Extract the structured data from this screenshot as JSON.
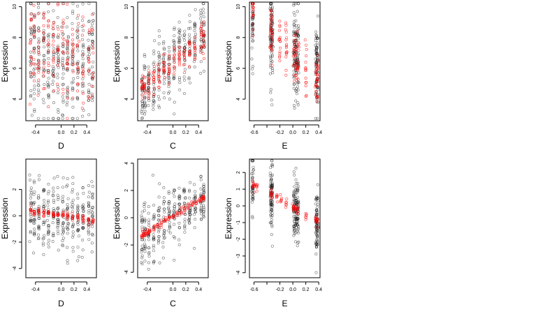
{
  "chart_data": [
    {
      "type": "scatter",
      "xlabel": "D",
      "ylabel": "Expression",
      "xlim": [
        -0.55,
        0.55
      ],
      "ylim": [
        2.6,
        10.3
      ],
      "xticks": [
        -0.4,
        0.0,
        0.2,
        0.4
      ],
      "xtick_labels": [
        "-0.4",
        "0.0",
        "0.2",
        "0.4"
      ],
      "yticks": [
        4,
        6,
        8,
        10
      ],
      "ytick_labels": [
        "4",
        "6",
        "8",
        "10"
      ],
      "series": [
        {
          "color": "#000000",
          "kind": "observed",
          "trend": {
            "slope": -0.5,
            "intercept": 6.5,
            "spread": 1.9
          },
          "x_levels": [
            -0.47,
            -0.42,
            -0.35,
            -0.27,
            -0.2,
            -0.12,
            -0.05,
            0.03,
            0.1,
            0.18,
            0.26,
            0.34,
            0.43,
            0.49
          ],
          "n": 360
        },
        {
          "color": "#ff0000",
          "kind": "fitted",
          "trend": {
            "slope": -1.2,
            "intercept": 6.9,
            "spread": 1.5
          },
          "x_levels": [
            -0.47,
            -0.42,
            -0.35,
            -0.27,
            -0.2,
            -0.12,
            -0.05,
            0.03,
            0.1,
            0.18,
            0.26,
            0.34,
            0.43,
            0.49
          ],
          "n": 180
        }
      ]
    },
    {
      "type": "scatter",
      "xlabel": "C",
      "ylabel": "Expression",
      "xlim": [
        -0.55,
        0.55
      ],
      "ylim": [
        2.6,
        10.3
      ],
      "xticks": [
        -0.4,
        0.0,
        0.2,
        0.4
      ],
      "xtick_labels": [
        "-0.4",
        "0.0",
        "0.2",
        "0.4"
      ],
      "yticks": [
        4,
        6,
        8,
        10
      ],
      "ytick_labels": [
        "4",
        "6",
        "8",
        "10"
      ],
      "series": [
        {
          "color": "#000000",
          "kind": "observed",
          "trend": {
            "slope": 3.6,
            "intercept": 6.4,
            "spread": 1.2
          },
          "x_levels": [
            -0.48,
            -0.44,
            -0.38,
            -0.3,
            -0.22,
            -0.14,
            -0.06,
            0.02,
            0.1,
            0.18,
            0.26,
            0.34,
            0.44,
            0.48
          ],
          "n": 300
        },
        {
          "color": "#ff0000",
          "kind": "fitted",
          "trend": {
            "slope": 3.4,
            "intercept": 6.3,
            "spread": 0.5
          },
          "x_levels": [
            -0.48,
            -0.44,
            -0.38,
            -0.3,
            -0.22,
            -0.14,
            -0.06,
            0.02,
            0.1,
            0.18,
            0.26,
            0.34,
            0.44,
            0.48
          ],
          "n": 160
        }
      ]
    },
    {
      "type": "scatter",
      "xlabel": "E",
      "ylabel": "Expression",
      "xlim": [
        -0.67,
        0.42
      ],
      "ylim": [
        2.6,
        10.3
      ],
      "xticks": [
        -0.6,
        -0.4,
        -0.2,
        0.0,
        0.2,
        0.4
      ],
      "xtick_labels": [
        "-0.6",
        "",
        "-0.2",
        "0.0",
        "0.2",
        "0.4"
      ],
      "yticks": [
        4,
        6,
        8,
        10
      ],
      "ytick_labels": [
        "4",
        "6",
        "8",
        "10"
      ],
      "series": [
        {
          "color": "#000000",
          "kind": "observed",
          "trend": {
            "slope": -3.2,
            "intercept": 7.0,
            "spread": 1.4
          },
          "x_levels": [
            -0.62,
            -0.34,
            -0.32,
            0.02,
            0.05,
            0.08,
            0.36,
            0.38
          ],
          "n": 340
        },
        {
          "color": "#ff0000",
          "kind": "fitted",
          "trend": {
            "slope": -4.0,
            "intercept": 7.0,
            "spread": 0.9
          },
          "x_levels": [
            -0.62,
            -0.34,
            -0.32,
            -0.2,
            -0.1,
            0.02,
            0.05,
            0.08,
            0.2,
            0.36,
            0.38
          ],
          "n": 170
        }
      ]
    },
    {
      "type": "scatter",
      "xlabel": "D",
      "ylabel": "Expression",
      "xlim": [
        -0.55,
        0.55
      ],
      "ylim": [
        -4.7,
        4.3
      ],
      "xticks": [
        -0.4,
        0.0,
        0.2,
        0.4
      ],
      "xtick_labels": [
        "-0.4",
        "0.0",
        "0.2",
        "0.4"
      ],
      "yticks": [
        -4,
        -2,
        0,
        2
      ],
      "ytick_labels": [
        "-4",
        "-2",
        "0",
        "2"
      ],
      "series": [
        {
          "color": "#000000",
          "kind": "observed",
          "trend": {
            "slope": -0.3,
            "intercept": 0.0,
            "spread": 1.4
          },
          "x_levels": [
            -0.47,
            -0.42,
            -0.35,
            -0.27,
            -0.2,
            -0.12,
            -0.05,
            0.03,
            0.1,
            0.18,
            0.26,
            0.34,
            0.43,
            0.49
          ],
          "n": 320
        },
        {
          "color": "#ff0000",
          "kind": "fitted",
          "trend": {
            "slope": -0.8,
            "intercept": 0.05,
            "spread": 0.15
          },
          "x_levels": [
            -0.47,
            -0.42,
            -0.35,
            -0.27,
            -0.2,
            -0.12,
            -0.05,
            0.03,
            0.1,
            0.18,
            0.26,
            0.34,
            0.43,
            0.49
          ],
          "n": 110
        }
      ]
    },
    {
      "type": "scatter",
      "xlabel": "C",
      "ylabel": "Expression",
      "xlim": [
        -0.55,
        0.55
      ],
      "ylim": [
        -4.4,
        4.3
      ],
      "xticks": [
        -0.4,
        0.0,
        0.2,
        0.4
      ],
      "xtick_labels": [
        "-0.4",
        "0.0",
        "0.2",
        "0.4"
      ],
      "yticks": [
        -4,
        -2,
        0,
        2,
        4
      ],
      "ytick_labels": [
        "-4",
        "-2",
        "0",
        "2",
        "4"
      ],
      "series": [
        {
          "color": "#000000",
          "kind": "observed",
          "trend": {
            "slope": 2.9,
            "intercept": 0.1,
            "spread": 1.1
          },
          "x_levels": [
            -0.48,
            -0.44,
            -0.38,
            -0.3,
            -0.22,
            -0.14,
            -0.06,
            0.02,
            0.1,
            0.18,
            0.26,
            0.34,
            0.44,
            0.48
          ],
          "n": 300
        },
        {
          "color": "#ff0000",
          "kind": "fitted",
          "trend": {
            "slope": 2.9,
            "intercept": 0.1,
            "spread": 0.12
          },
          "x_levels": [
            -0.48,
            -0.46,
            -0.44,
            -0.4,
            -0.36,
            -0.3,
            -0.24,
            -0.18,
            -0.12,
            -0.06,
            0.0,
            0.06,
            0.12,
            0.18,
            0.24,
            0.3,
            0.36,
            0.42,
            0.46,
            0.48
          ],
          "n": 120
        }
      ]
    },
    {
      "type": "scatter",
      "xlabel": "E",
      "ylabel": "Expression",
      "xlim": [
        -0.67,
        0.42
      ],
      "ylim": [
        -4.3,
        2.8
      ],
      "xticks": [
        -0.6,
        -0.4,
        -0.2,
        0.0,
        0.2,
        0.4
      ],
      "xtick_labels": [
        "-0.6",
        "",
        "-0.2",
        "0.0",
        "0.2",
        "0.4"
      ],
      "yticks": [
        -4,
        -3,
        -2,
        -1,
        0,
        1,
        2
      ],
      "ytick_labels": [
        "-4",
        "-3",
        "-2",
        "-1",
        "0",
        "1",
        "2"
      ],
      "series": [
        {
          "color": "#000000",
          "kind": "observed",
          "trend": {
            "slope": -2.3,
            "intercept": -0.1,
            "spread": 1.0
          },
          "x_levels": [
            -0.62,
            -0.34,
            -0.32,
            0.02,
            0.05,
            0.08,
            0.36,
            0.38
          ],
          "n": 320
        },
        {
          "color": "#ff0000",
          "kind": "fitted",
          "trend": {
            "slope": -2.3,
            "intercept": -0.1,
            "spread": 0.15
          },
          "x_levels": [
            -0.62,
            -0.6,
            -0.55,
            -0.34,
            -0.32,
            -0.25,
            -0.18,
            -0.1,
            0.0,
            0.02,
            0.05,
            0.08,
            0.2,
            0.36,
            0.38
          ],
          "n": 90
        }
      ]
    }
  ]
}
